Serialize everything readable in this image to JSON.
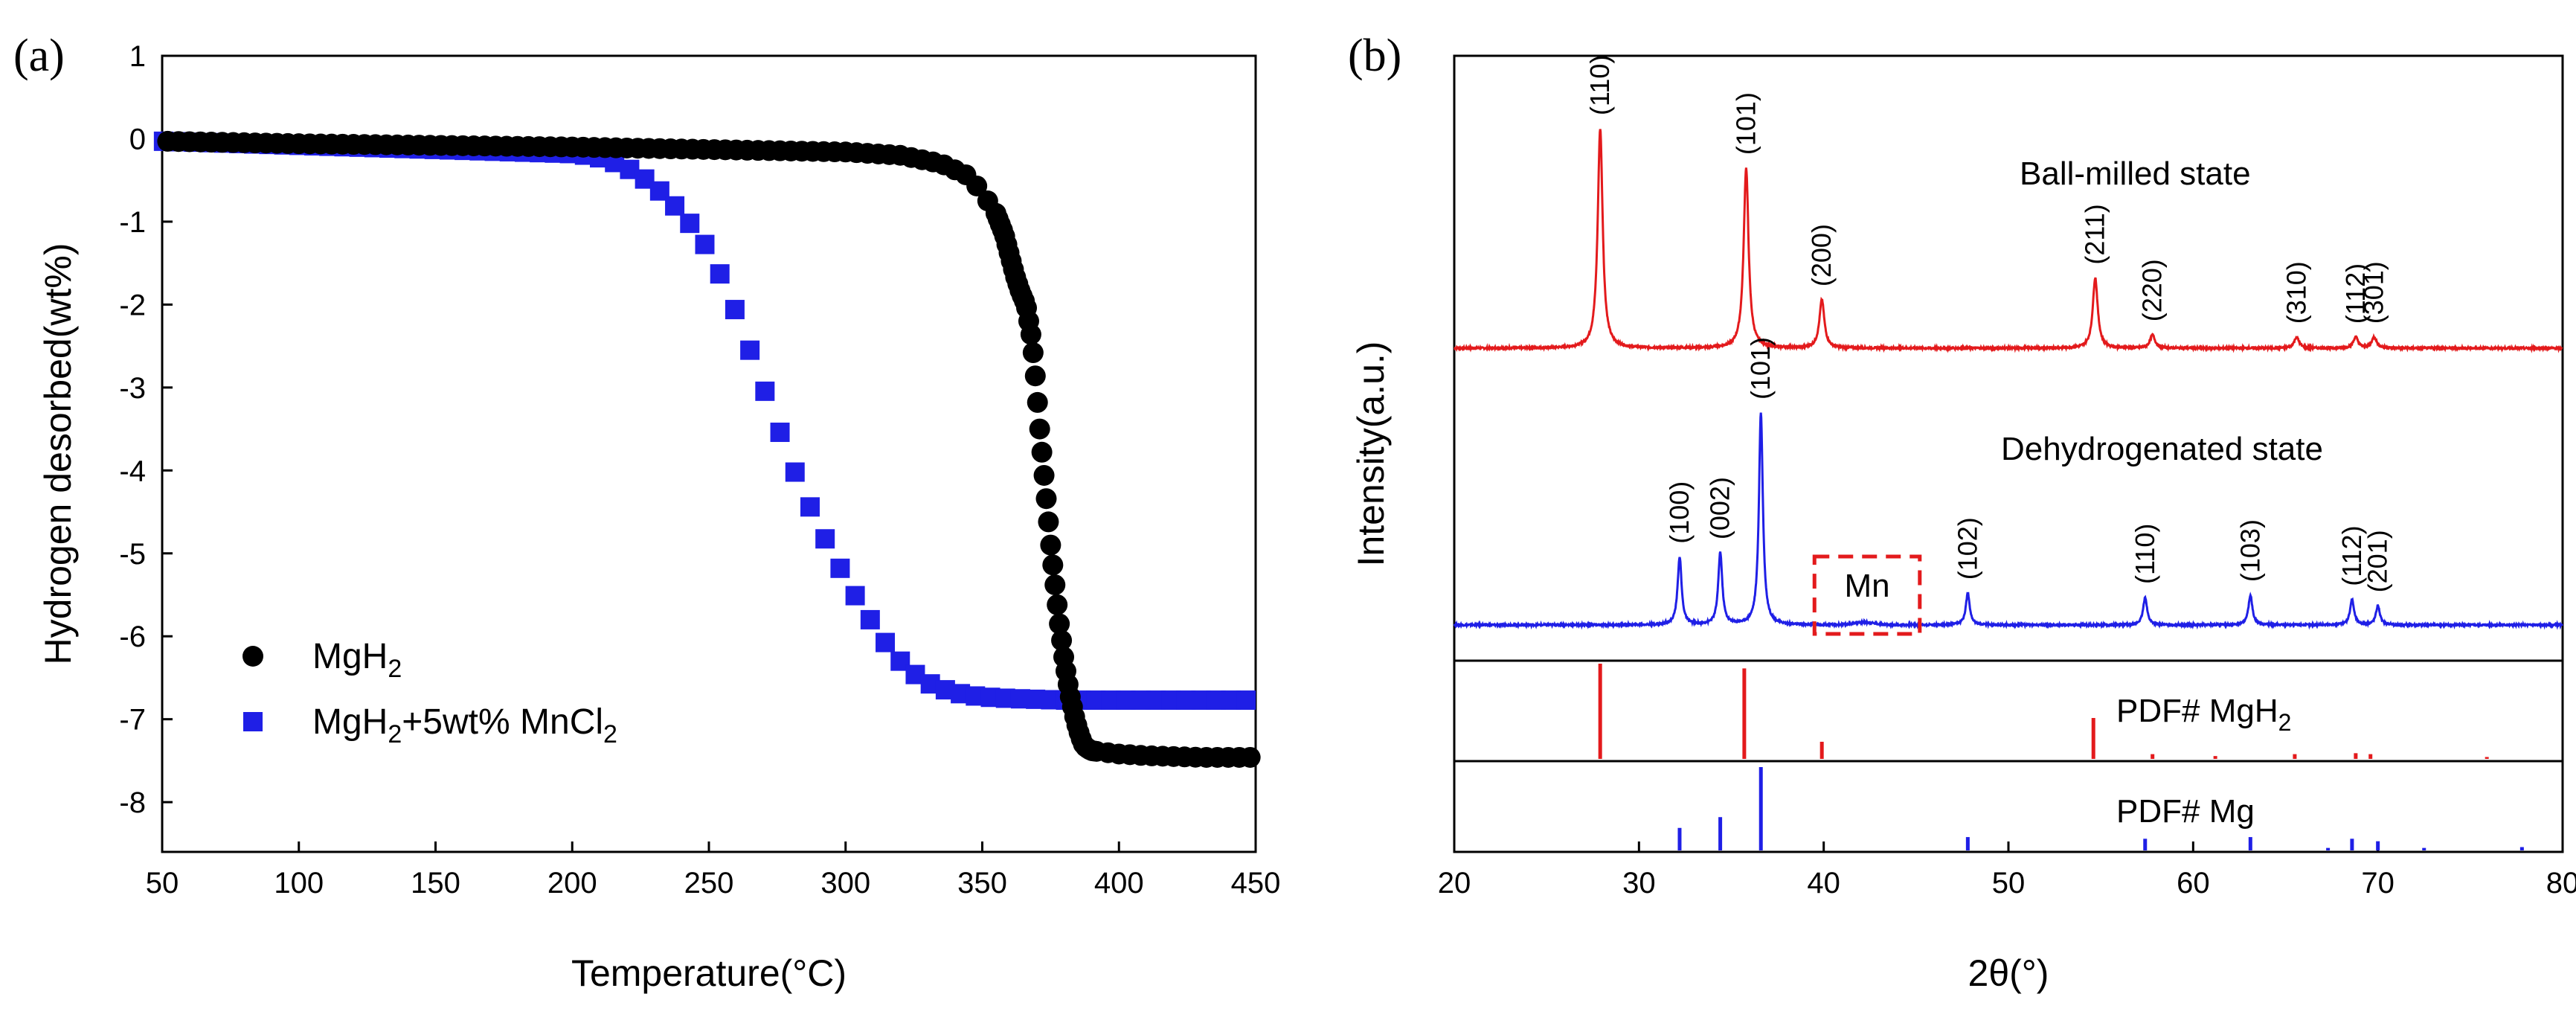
{
  "figure": {
    "panel_a_label": "(a)",
    "panel_b_label": "(b)"
  },
  "chart_data": [
    {
      "type": "scatter",
      "panel": "(a)",
      "xlabel": "Temperature(°C)",
      "ylabel": "Hydrogen desorbed(wt%)",
      "xlim": [
        50,
        450
      ],
      "ylim": [
        -8.6,
        1
      ],
      "xticks": [
        50,
        100,
        150,
        200,
        250,
        300,
        350,
        400,
        450
      ],
      "yticks": [
        1,
        0,
        -1,
        -2,
        -3,
        -4,
        -5,
        -6,
        -7,
        -8
      ],
      "legend_position": "lower-left",
      "series": [
        {
          "name": "MgH₂",
          "name_base": "MgH",
          "name_sub": "2",
          "color": "#000000",
          "marker": "circle",
          "x": [
            50,
            100,
            150,
            200,
            250,
            300,
            320,
            335,
            345,
            350,
            355,
            358,
            360,
            362,
            364,
            366,
            367,
            368,
            369,
            370,
            371,
            372,
            373,
            374,
            375,
            376,
            377,
            378,
            379,
            380,
            381,
            382,
            383,
            384,
            385,
            386,
            387,
            388,
            389,
            390,
            395,
            400,
            410,
            420,
            430,
            440,
            450
          ],
          "y": [
            -0.03,
            -0.06,
            -0.08,
            -0.1,
            -0.13,
            -0.16,
            -0.2,
            -0.3,
            -0.45,
            -0.65,
            -0.9,
            -1.15,
            -1.4,
            -1.65,
            -1.85,
            -2.0,
            -2.2,
            -2.4,
            -2.7,
            -3.1,
            -3.5,
            -3.85,
            -4.2,
            -4.55,
            -4.9,
            -5.2,
            -5.5,
            -5.8,
            -6.05,
            -6.3,
            -6.5,
            -6.7,
            -6.85,
            -7.0,
            -7.12,
            -7.22,
            -7.3,
            -7.34,
            -7.36,
            -7.38,
            -7.4,
            -7.42,
            -7.44,
            -7.45,
            -7.46,
            -7.46,
            -7.46
          ]
        },
        {
          "name": "MgH₂+5wt% MnCl₂",
          "name_base": "MgH",
          "name_sub": "2",
          "name_mid": "+5wt% MnCl",
          "name_sub2": "2",
          "color": "#1f1fe6",
          "marker": "square",
          "x": [
            50,
            60,
            70,
            80,
            90,
            100,
            110,
            120,
            130,
            140,
            150,
            160,
            170,
            180,
            190,
            200,
            205,
            210,
            215,
            220,
            225,
            230,
            235,
            240,
            245,
            250,
            255,
            260,
            265,
            270,
            275,
            280,
            285,
            290,
            295,
            300,
            305,
            310,
            315,
            320,
            325,
            330,
            335,
            340,
            345,
            350,
            360,
            370,
            380,
            390,
            400,
            410,
            420,
            430,
            440,
            450
          ],
          "y": [
            -0.03,
            -0.04,
            -0.05,
            -0.06,
            -0.07,
            -0.08,
            -0.09,
            -0.1,
            -0.11,
            -0.12,
            -0.13,
            -0.14,
            -0.15,
            -0.16,
            -0.17,
            -0.18,
            -0.2,
            -0.23,
            -0.28,
            -0.35,
            -0.45,
            -0.57,
            -0.72,
            -0.9,
            -1.1,
            -1.35,
            -1.7,
            -2.1,
            -2.55,
            -3.0,
            -3.45,
            -3.9,
            -4.3,
            -4.65,
            -5.0,
            -5.3,
            -5.6,
            -5.85,
            -6.1,
            -6.3,
            -6.45,
            -6.56,
            -6.63,
            -6.68,
            -6.71,
            -6.73,
            -6.75,
            -6.76,
            -6.77,
            -6.77,
            -6.77,
            -6.77,
            -6.77,
            -6.77,
            -6.77,
            -6.77
          ]
        }
      ]
    },
    {
      "type": "line",
      "panel": "(b)",
      "xlabel": "2θ(°)",
      "ylabel": "Intensity(a.u.)",
      "xlim": [
        20,
        80
      ],
      "xticks": [
        20,
        30,
        40,
        50,
        60,
        70,
        80
      ],
      "states": [
        {
          "name": "Ball-milled state",
          "color": "#e31a1c",
          "peaks": [
            {
              "x": 27.9,
              "h": 1.0,
              "hkl": "(110)"
            },
            {
              "x": 35.8,
              "h": 0.82,
              "hkl": "(101)"
            },
            {
              "x": 39.9,
              "h": 0.22,
              "hkl": "(200)"
            },
            {
              "x": 54.7,
              "h": 0.32,
              "hkl": "(211)"
            },
            {
              "x": 57.8,
              "h": 0.06,
              "hkl": "(220)"
            },
            {
              "x": 65.6,
              "h": 0.05,
              "hkl": "(310)"
            },
            {
              "x": 68.8,
              "h": 0.05,
              "hkl": "(112)"
            },
            {
              "x": 69.8,
              "h": 0.05,
              "hkl": "(301)"
            }
          ]
        },
        {
          "name": "Dehydrogenated state",
          "color": "#1f1fe6",
          "peaks": [
            {
              "x": 32.2,
              "h": 0.32,
              "hkl": "(100)"
            },
            {
              "x": 34.4,
              "h": 0.34,
              "hkl": "(002)"
            },
            {
              "x": 36.6,
              "h": 1.0,
              "hkl": "(101)"
            },
            {
              "x": 47.8,
              "h": 0.15,
              "hkl": "(102)"
            },
            {
              "x": 57.4,
              "h": 0.13,
              "hkl": "(110)"
            },
            {
              "x": 63.1,
              "h": 0.14,
              "hkl": "(103)"
            },
            {
              "x": 68.6,
              "h": 0.12,
              "hkl": "(112)"
            },
            {
              "x": 70.0,
              "h": 0.09,
              "hkl": "(201)"
            }
          ],
          "annotation": {
            "text": "Mn",
            "x_range": [
              39.5,
              45.2
            ]
          }
        }
      ],
      "references": [
        {
          "label_base": "PDF# MgH",
          "label_sub": "2",
          "color": "#e31a1c",
          "lines": [
            {
              "x": 27.9,
              "h": 1.0
            },
            {
              "x": 35.7,
              "h": 0.95
            },
            {
              "x": 39.9,
              "h": 0.18
            },
            {
              "x": 54.6,
              "h": 0.43
            },
            {
              "x": 57.8,
              "h": 0.05
            },
            {
              "x": 61.2,
              "h": 0.03
            },
            {
              "x": 65.5,
              "h": 0.05
            },
            {
              "x": 68.8,
              "h": 0.06
            },
            {
              "x": 69.6,
              "h": 0.05
            },
            {
              "x": 75.9,
              "h": 0.02
            }
          ]
        },
        {
          "label": "PDF# Mg",
          "color": "#1f1fe6",
          "lines": [
            {
              "x": 32.2,
              "h": 0.27
            },
            {
              "x": 34.4,
              "h": 0.4
            },
            {
              "x": 36.6,
              "h": 1.0
            },
            {
              "x": 47.8,
              "h": 0.16
            },
            {
              "x": 57.4,
              "h": 0.14
            },
            {
              "x": 63.1,
              "h": 0.16
            },
            {
              "x": 67.3,
              "h": 0.03
            },
            {
              "x": 68.6,
              "h": 0.14
            },
            {
              "x": 70.0,
              "h": 0.11
            },
            {
              "x": 72.5,
              "h": 0.03
            },
            {
              "x": 77.8,
              "h": 0.04
            }
          ]
        }
      ]
    }
  ]
}
